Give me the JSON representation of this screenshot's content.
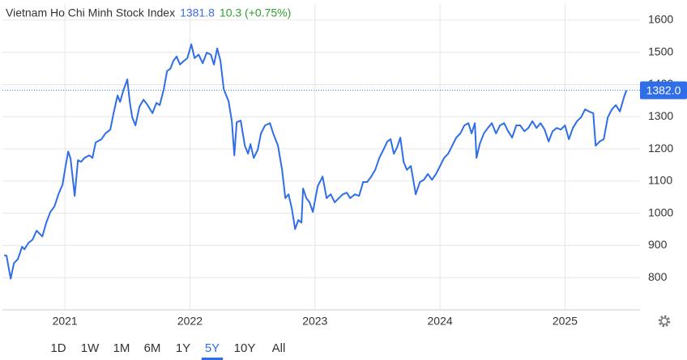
{
  "chart_data": {
    "type": "line",
    "title": "Vietnam Ho Chi Minh Stock Index",
    "price": 1381.8,
    "change": "10.3 (+0.75%)",
    "x": [
      2020.514,
      2020.533,
      2020.566,
      2020.592,
      2020.624,
      2020.657,
      2020.676,
      2020.708,
      2020.741,
      2020.773,
      2020.819,
      2020.851,
      2020.883,
      2020.916,
      2020.948,
      2020.981,
      2021.0,
      2021.026,
      2021.045,
      2021.078,
      2021.104,
      2021.13,
      2021.156,
      2021.194,
      2021.22,
      2021.246,
      2021.292,
      2021.324,
      2021.363,
      2021.389,
      2021.421,
      2021.441,
      2021.467,
      2021.499,
      2021.518,
      2021.538,
      2021.564,
      2021.596,
      2021.629,
      2021.661,
      2021.7,
      2021.732,
      2021.758,
      2021.791,
      2021.817,
      2021.843,
      2021.868,
      2021.894,
      2021.92,
      2021.953,
      2021.979,
      2022.011,
      2022.037,
      2022.069,
      2022.102,
      2022.134,
      2022.167,
      2022.192,
      2022.218,
      2022.244,
      2022.27,
      2022.309,
      2022.335,
      2022.355,
      2022.374,
      2022.406,
      2022.439,
      2022.465,
      2022.484,
      2022.51,
      2022.542,
      2022.568,
      2022.601,
      2022.64,
      2022.666,
      2022.704,
      2022.737,
      2022.763,
      2022.789,
      2022.815,
      2022.841,
      2022.867,
      2022.892,
      2022.905,
      2022.931,
      2022.957,
      2022.983,
      2023.022,
      2023.061,
      2023.093,
      2023.126,
      2023.158,
      2023.191,
      2023.223,
      2023.255,
      2023.281,
      2023.32,
      2023.353,
      2023.385,
      2023.417,
      2023.45,
      2023.482,
      2023.515,
      2023.547,
      2023.579,
      2023.605,
      2023.631,
      2023.657,
      2023.683,
      2023.709,
      2023.735,
      2023.767,
      2023.806,
      2023.839,
      2023.871,
      2023.903,
      2023.936,
      2023.968,
      2024.001,
      2024.033,
      2024.065,
      2024.098,
      2024.13,
      2024.163,
      2024.195,
      2024.227,
      2024.253,
      2024.279,
      2024.292,
      2024.318,
      2024.351,
      2024.383,
      2024.415,
      2024.448,
      2024.48,
      2024.513,
      2024.545,
      2024.577,
      2024.61,
      2024.642,
      2024.675,
      2024.707,
      2024.739,
      2024.772,
      2024.804,
      2024.837,
      2024.869,
      2024.901,
      2024.934,
      2024.966,
      2025.0,
      2025.031,
      2025.063,
      2025.096,
      2025.128,
      2025.161,
      2025.193,
      2025.226,
      2025.245,
      2025.277,
      2025.31,
      2025.342,
      2025.375,
      2025.407,
      2025.439,
      2025.472,
      2025.491
    ],
    "series": [
      {
        "name": "Vietnam Ho Chi Minh Stock Index",
        "color": "#2f6ee8",
        "values": [
          870,
          868,
          797,
          845,
          858,
          896,
          888,
          908,
          918,
          946,
          928,
          971,
          1004,
          1021,
          1059,
          1089,
          1135,
          1192,
          1170,
          1054,
          1165,
          1160,
          1172,
          1180,
          1172,
          1220,
          1230,
          1248,
          1260,
          1311,
          1366,
          1346,
          1381,
          1416,
          1348,
          1298,
          1273,
          1331,
          1353,
          1336,
          1311,
          1343,
          1336,
          1386,
          1442,
          1449,
          1474,
          1487,
          1462,
          1474,
          1482,
          1525,
          1482,
          1493,
          1466,
          1499,
          1493,
          1462,
          1512,
          1474,
          1386,
          1348,
          1286,
          1180,
          1283,
          1288,
          1210,
          1185,
          1215,
          1172,
          1197,
          1248,
          1273,
          1280,
          1248,
          1210,
          1135,
          1047,
          1059,
          1014,
          951,
          979,
          971,
          1077,
          1047,
          1034,
          1004,
          1084,
          1114,
          1047,
          1059,
          1034,
          1047,
          1059,
          1064,
          1047,
          1059,
          1054,
          1097,
          1097,
          1114,
          1135,
          1172,
          1197,
          1223,
          1230,
          1185,
          1205,
          1235,
          1160,
          1135,
          1147,
          1059,
          1097,
          1104,
          1122,
          1104,
          1122,
          1147,
          1172,
          1185,
          1210,
          1235,
          1248,
          1273,
          1280,
          1248,
          1280,
          1172,
          1215,
          1248,
          1265,
          1280,
          1248,
          1273,
          1280,
          1255,
          1235,
          1273,
          1273,
          1255,
          1265,
          1286,
          1265,
          1280,
          1260,
          1223,
          1255,
          1265,
          1260,
          1273,
          1230,
          1265,
          1286,
          1298,
          1323,
          1316,
          1311,
          1210,
          1223,
          1230,
          1298,
          1323,
          1336,
          1316,
          1361,
          1381.8
        ]
      }
    ],
    "xlim": [
      2020.5,
      2025.6
    ],
    "xticks": [
      2021,
      2022,
      2023,
      2024,
      2025
    ],
    "ylim": [
      700,
      1650
    ],
    "yticks": [
      800,
      900,
      1000,
      1100,
      1200,
      1300,
      1400,
      1500,
      1600
    ],
    "last_price": {
      "value": 1382,
      "label": "1382.0"
    },
    "grid": true
  },
  "range_buttons": [
    "1D",
    "1W",
    "1M",
    "6M",
    "1Y",
    "5Y",
    "10Y",
    "All"
  ],
  "selected_range": 5
}
